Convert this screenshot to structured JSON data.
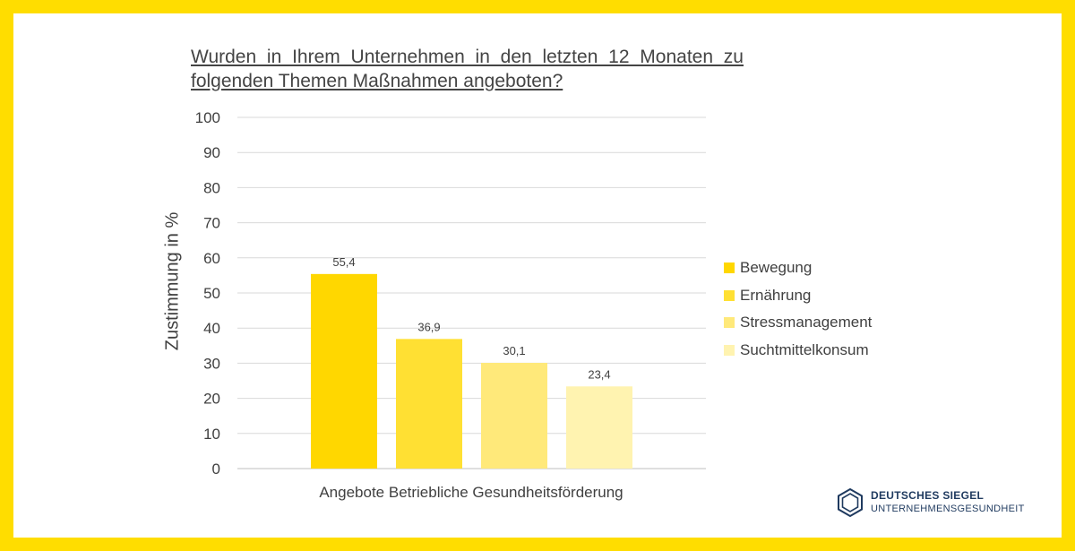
{
  "chart_data": {
    "type": "bar",
    "title": "Wurden in Ihrem Unternehmen in den letzten 12 Monaten zu folgenden Themen Maßnahmen angeboten?",
    "xlabel": "Angebote Betriebliche Gesundheitsförderung",
    "ylabel": "Zustimmung in %",
    "ylim": [
      0,
      100
    ],
    "yticks": [
      0,
      10,
      20,
      30,
      40,
      50,
      60,
      70,
      80,
      90,
      100
    ],
    "grid": true,
    "legend_position": "right",
    "categories": [
      "Angebote Betriebliche Gesundheitsförderung"
    ],
    "series": [
      {
        "name": "Bewegung",
        "values": [
          55.4
        ],
        "label": "55,4",
        "color": "#FFD700"
      },
      {
        "name": "Ernährung",
        "values": [
          36.9
        ],
        "label": "36,9",
        "color": "#FFE033"
      },
      {
        "name": "Stressmanagement",
        "values": [
          30.1
        ],
        "label": "30,1",
        "color": "#FFE97A"
      },
      {
        "name": "Suchtmittelkonsum",
        "values": [
          23.4
        ],
        "label": "23,4",
        "color": "#FFF3B0"
      }
    ]
  },
  "branding": {
    "line1": "DEUTSCHES SIEGEL",
    "line2": "UNTERNEHMENSGESUNDHEIT",
    "frame_color": "#FFDD00",
    "logo_color": "#1F3A5F"
  }
}
